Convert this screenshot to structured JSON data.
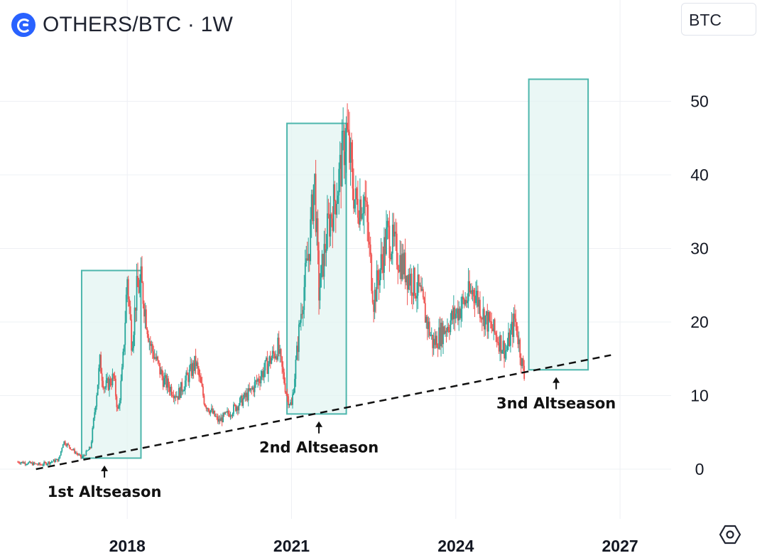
{
  "header": {
    "symbol_title": "OTHERS/BTC · 1W",
    "currency_label": "BTC",
    "symbol_icon": "coin-icon"
  },
  "settings_icon": "hexagon-gear-icon",
  "colors": {
    "up": "#26a69a",
    "down": "#ef5350",
    "box_stroke": "#4db6ac",
    "box_fill": "#e3f4f2",
    "grid": "#eef0f4",
    "trendline": "#111111"
  },
  "chart_data": {
    "type": "candlestick",
    "title": "OTHERS/BTC · 1W",
    "xlabel": "",
    "ylabel": "",
    "x_ticks": [
      "2018",
      "2021",
      "2024",
      "2027"
    ],
    "y_ticks": [
      0,
      10,
      20,
      30,
      40,
      50
    ],
    "xlim": [
      "2016-01",
      "2027-06"
    ],
    "ylim": [
      -7,
      60
    ],
    "grid": true,
    "price_path": [
      [
        "2016-01",
        1.0
      ],
      [
        "2016-06",
        0.6
      ],
      [
        "2016-10",
        1.3
      ],
      [
        "2016-11",
        3.8
      ],
      [
        "2017-03",
        1.5
      ],
      [
        "2017-05",
        3.0
      ],
      [
        "2017-07",
        14.5
      ],
      [
        "2017-08",
        11.0
      ],
      [
        "2017-10",
        12.5
      ],
      [
        "2017-11",
        7.5
      ],
      [
        "2017-12",
        14.0
      ],
      [
        "2018-01",
        26.0
      ],
      [
        "2018-02",
        17.0
      ],
      [
        "2018-03",
        24.0
      ],
      [
        "2018-04",
        25.5
      ],
      [
        "2018-06",
        17.0
      ],
      [
        "2018-09",
        12.0
      ],
      [
        "2018-12",
        10.0
      ],
      [
        "2019-04",
        14.5
      ],
      [
        "2019-06",
        9.0
      ],
      [
        "2019-09",
        6.5
      ],
      [
        "2019-12",
        8.0
      ],
      [
        "2020-04",
        10.5
      ],
      [
        "2020-08",
        14.5
      ],
      [
        "2020-10",
        16.5
      ],
      [
        "2020-12",
        10.0
      ],
      [
        "2021-01",
        8.5
      ],
      [
        "2021-03",
        21.0
      ],
      [
        "2021-05",
        31.0
      ],
      [
        "2021-06",
        40.0
      ],
      [
        "2021-07",
        24.0
      ],
      [
        "2021-09",
        33.0
      ],
      [
        "2021-11",
        38.0
      ],
      [
        "2022-01",
        46.0
      ],
      [
        "2022-03",
        36.0
      ],
      [
        "2022-05",
        37.0
      ],
      [
        "2022-07",
        23.0
      ],
      [
        "2022-10",
        32.0
      ],
      [
        "2023-02",
        27.0
      ],
      [
        "2023-05",
        24.0
      ],
      [
        "2023-08",
        17.0
      ],
      [
        "2023-11",
        19.5
      ],
      [
        "2024-02",
        22.0
      ],
      [
        "2024-05",
        24.5
      ],
      [
        "2024-07",
        21.0
      ],
      [
        "2024-10",
        18.0
      ],
      [
        "2024-12",
        16.0
      ],
      [
        "2025-02",
        20.5
      ],
      [
        "2025-04",
        12.5
      ]
    ],
    "highlight_boxes": [
      {
        "x0": "2017-03",
        "x1": "2018-04",
        "y0": 1.5,
        "y1": 27.0
      },
      {
        "x0": "2020-12",
        "x1": "2022-01",
        "y0": 7.5,
        "y1": 47.0
      },
      {
        "x0": "2025-05",
        "x1": "2026-06",
        "y0": 13.5,
        "y1": 53.0
      }
    ],
    "trendline": {
      "x0": "2016-05",
      "y0": 0.0,
      "x1": "2026-11",
      "y1": 15.5,
      "style": "dashed"
    },
    "annotations": [
      {
        "text": "1st Altseason",
        "x": "2017-08",
        "y": 0.5
      },
      {
        "text": "2nd Altseason",
        "x": "2021-07",
        "y": 6.5
      },
      {
        "text": "3nd Altseason",
        "x": "2025-11",
        "y": 12.5
      }
    ]
  }
}
